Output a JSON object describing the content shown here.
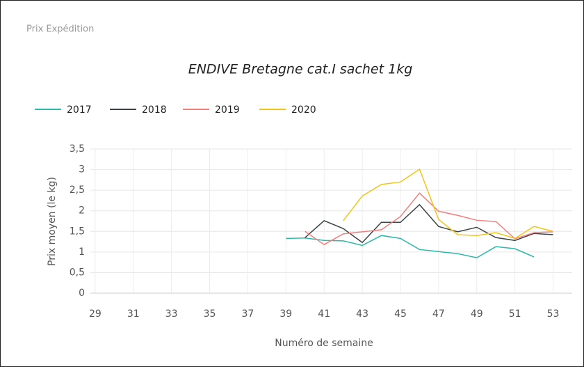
{
  "header": "Prix Expédition",
  "chart_data": {
    "type": "line",
    "title": "ENDIVE Bretagne cat.I sachet 1kg",
    "x_label": "Numéro de semaine",
    "y_label": "Prix moyen  (le kg)",
    "x": [
      39,
      40,
      41,
      42,
      43,
      44,
      45,
      46,
      47,
      48,
      49,
      50,
      51,
      52,
      53
    ],
    "series": [
      {
        "name": "2017",
        "color": "#2bb8aa",
        "values": [
          1.33,
          1.34,
          1.28,
          1.27,
          1.16,
          1.4,
          1.33,
          1.06,
          1.01,
          0.96,
          0.86,
          1.13,
          1.08,
          0.88,
          null
        ]
      },
      {
        "name": "2018",
        "color": "#3c4345",
        "values": [
          null,
          1.35,
          1.76,
          1.57,
          1.23,
          1.72,
          1.72,
          2.15,
          1.62,
          1.49,
          1.6,
          1.35,
          1.28,
          1.45,
          1.42
        ]
      },
      {
        "name": "2019",
        "color": "#f47e7b",
        "values": [
          null,
          1.5,
          1.18,
          1.44,
          1.49,
          1.54,
          1.86,
          2.43,
          1.99,
          1.89,
          1.77,
          1.74,
          1.32,
          1.47,
          1.49
        ]
      },
      {
        "name": "2020",
        "color": "#f2c418",
        "values": [
          null,
          null,
          null,
          1.76,
          2.36,
          2.64,
          2.7,
          3.01,
          1.79,
          1.42,
          1.4,
          1.47,
          1.33,
          1.62,
          1.5
        ]
      }
    ],
    "xlim": [
      28.75,
      54
    ],
    "xticks": [
      29,
      31,
      33,
      35,
      37,
      39,
      41,
      43,
      45,
      47,
      49,
      51,
      53
    ],
    "ylim": [
      0,
      3.5
    ],
    "yticks": [
      0,
      {
        "value": 0.5,
        "label": "0,5"
      },
      1,
      {
        "value": 1.5,
        "label": "1,5"
      },
      2,
      {
        "value": 2.5,
        "label": "2,5"
      },
      3,
      {
        "value": 3.5,
        "label": "3,5"
      }
    ],
    "grid": true,
    "legend": "top-left"
  }
}
